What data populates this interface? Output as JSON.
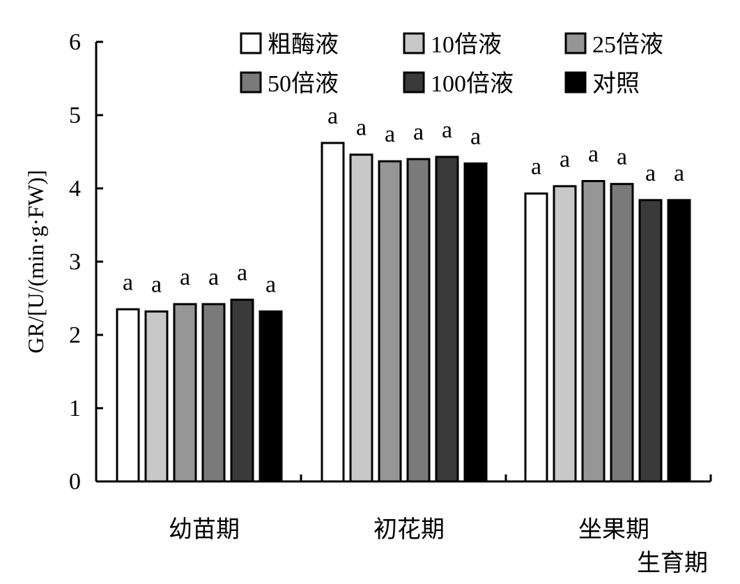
{
  "chart_data": {
    "type": "bar",
    "title": "",
    "xlabel": "生育期",
    "ylabel": "GR/[U/(min·g·FW)]",
    "ylim": [
      0,
      6
    ],
    "yticks": [
      "0",
      "1",
      "2",
      "3",
      "4",
      "5",
      "6"
    ],
    "categories": [
      "幼苗期",
      "初花期",
      "坐果期"
    ],
    "legend_position": "top",
    "grid": false,
    "series": [
      {
        "name": "粗酶液",
        "color": "#ffffff",
        "values": [
          2.35,
          4.62,
          3.93
        ],
        "labels": [
          "a",
          "a",
          "a"
        ]
      },
      {
        "name": "10倍液",
        "color": "#c8c8c8",
        "values": [
          2.32,
          4.46,
          4.03
        ],
        "labels": [
          "a",
          "a",
          "a"
        ]
      },
      {
        "name": "25倍液",
        "color": "#969696",
        "values": [
          2.42,
          4.37,
          4.1
        ],
        "labels": [
          "a",
          "a",
          "a"
        ]
      },
      {
        "name": "50倍液",
        "color": "#7a7a7a",
        "values": [
          2.42,
          4.4,
          4.06
        ],
        "labels": [
          "a",
          "a",
          "a"
        ]
      },
      {
        "name": "100倍液",
        "color": "#3a3a3a",
        "values": [
          2.48,
          4.43,
          3.84
        ],
        "labels": [
          "a",
          "a",
          "a"
        ]
      },
      {
        "name": "对照",
        "color": "#000000",
        "values": [
          2.32,
          4.34,
          3.84
        ],
        "labels": [
          "a",
          "a",
          "a"
        ]
      }
    ]
  }
}
